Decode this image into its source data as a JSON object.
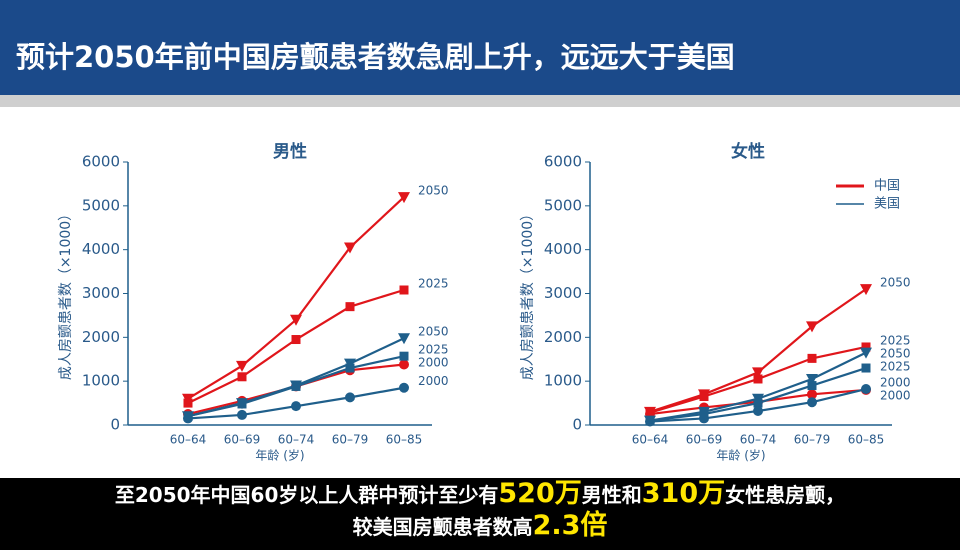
{
  "header": {
    "title": "预计2050年前中国房颤患者数急剧上升，远远大于美国"
  },
  "chart_data": [
    {
      "type": "line",
      "title": "男性",
      "x_label": "年龄 (岁)",
      "y_label": "成人房颤患者数（×1000）",
      "categories": [
        "60–64",
        "60–69",
        "60–74",
        "60–79",
        "60–85"
      ],
      "ylim": [
        0,
        6000
      ],
      "yticks": [
        0,
        1000,
        2000,
        3000,
        4000,
        5000,
        6000
      ],
      "series": [
        {
          "name": "2050",
          "color": "#e0161b",
          "marker": "triangle-down",
          "values": [
            600,
            1350,
            2400,
            4050,
            5200
          ]
        },
        {
          "name": "2025",
          "color": "#e0161b",
          "marker": "square",
          "values": [
            500,
            1100,
            1950,
            2700,
            3080
          ]
        },
        {
          "name": "2000",
          "color": "#e0161b",
          "marker": "circle",
          "values": [
            250,
            550,
            880,
            1250,
            1380
          ]
        },
        {
          "name": "2050",
          "color": "#1f5f8b",
          "marker": "triangle-down",
          "values": [
            200,
            500,
            900,
            1400,
            1980
          ]
        },
        {
          "name": "2025",
          "color": "#1f5f8b",
          "marker": "square",
          "values": [
            200,
            480,
            880,
            1300,
            1570
          ]
        },
        {
          "name": "2000",
          "color": "#1f5f8b",
          "marker": "circle",
          "values": [
            150,
            230,
            430,
            630,
            850
          ]
        }
      ]
    },
    {
      "type": "line",
      "title": "女性",
      "x_label": "年龄 (岁)",
      "y_label": "成人房颤患者数（×1000）",
      "categories": [
        "60–64",
        "60–69",
        "60–74",
        "60–79",
        "60–85"
      ],
      "ylim": [
        0,
        6000
      ],
      "yticks": [
        0,
        1000,
        2000,
        3000,
        4000,
        5000,
        6000
      ],
      "legend": [
        {
          "name": "中国",
          "color": "#e0161b"
        },
        {
          "name": "美国",
          "color": "#1f5f8b"
        }
      ],
      "series": [
        {
          "name": "2050",
          "color": "#e0161b",
          "marker": "triangle-down",
          "values": [
            300,
            700,
            1200,
            2250,
            3100
          ]
        },
        {
          "name": "2025",
          "color": "#e0161b",
          "marker": "square",
          "values": [
            280,
            650,
            1050,
            1520,
            1780
          ]
        },
        {
          "name": "2000",
          "color": "#e0161b",
          "marker": "circle",
          "values": [
            250,
            400,
            530,
            700,
            800
          ]
        },
        {
          "name": "2050",
          "color": "#1f5f8b",
          "marker": "triangle-down",
          "values": [
            100,
            300,
            600,
            1050,
            1650
          ]
        },
        {
          "name": "2025",
          "color": "#1f5f8b",
          "marker": "square",
          "values": [
            100,
            250,
            500,
            900,
            1300
          ]
        },
        {
          "name": "2000",
          "color": "#1f5f8b",
          "marker": "circle",
          "values": [
            80,
            150,
            320,
            520,
            820
          ]
        }
      ]
    }
  ],
  "footer": {
    "lines": [
      [
        {
          "text": "至2050年中国60岁以上人群中预计至少有",
          "highlight": false
        },
        {
          "text": "520万",
          "highlight": true
        },
        {
          "text": "男性和",
          "highlight": false
        },
        {
          "text": "310万",
          "highlight": true
        },
        {
          "text": "女性患房颤，",
          "highlight": false
        }
      ],
      [
        {
          "text": "较美国房颤患者数高",
          "highlight": false
        },
        {
          "text": "2.3倍",
          "highlight": true
        }
      ]
    ]
  }
}
